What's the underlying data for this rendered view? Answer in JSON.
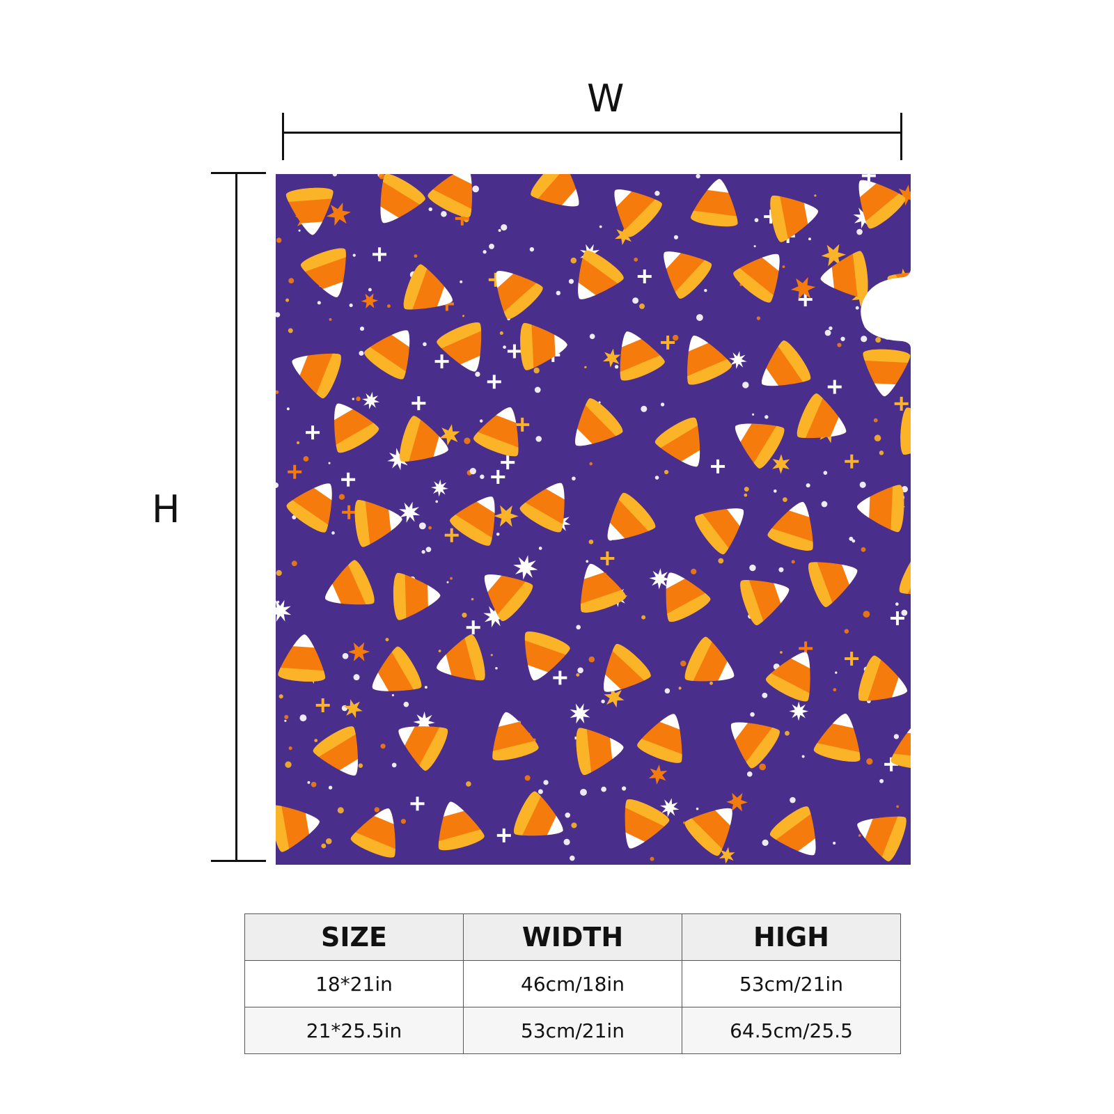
{
  "dimensions": {
    "width_label": "W",
    "height_label": "H"
  },
  "pattern": {
    "background_color": "#4a2e8c",
    "candy_colors": {
      "orange": "#f57c0c",
      "yellow": "#fbb428",
      "white": "#ffffff"
    },
    "decorations": [
      "white-star",
      "orange-star",
      "yellow-star",
      "plus",
      "dot"
    ]
  },
  "table": {
    "headers": [
      "SIZE",
      "WIDTH",
      "HIGH"
    ],
    "rows": [
      [
        "18*21in",
        "46cm/18in",
        "53cm/21in"
      ],
      [
        "21*25.5in",
        "53cm/21in",
        "64.5cm/25.5"
      ]
    ]
  }
}
